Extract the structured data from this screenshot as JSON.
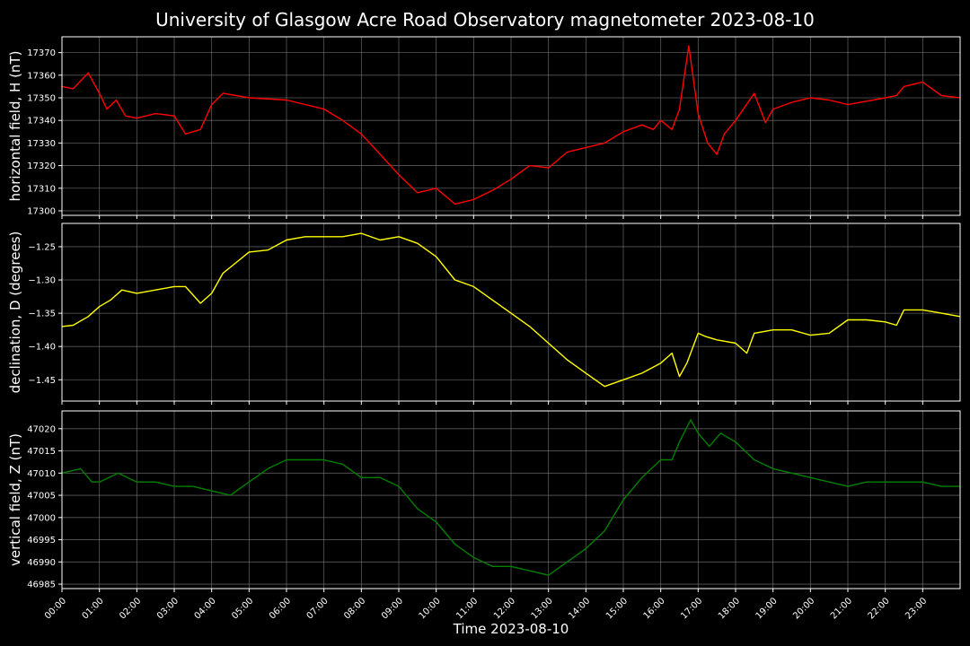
{
  "figure": {
    "title": "University of Glasgow Acre Road Observatory magnetometer 2023-08-10",
    "xlabel": "Time 2023-08-10",
    "background": "#000000",
    "grid_color": "#808080",
    "axis_color": "#ffffff"
  },
  "chart_data": [
    {
      "type": "line",
      "name": "H",
      "ylabel": "horizontal field, H (nT)",
      "color": "#ff0000",
      "xlim": [
        0,
        24
      ],
      "ylim": [
        17298,
        17377
      ],
      "yticks": [
        17300,
        17310,
        17320,
        17330,
        17340,
        17350,
        17360,
        17370
      ],
      "grid": true,
      "x": [
        0,
        0.3,
        0.7,
        1.0,
        1.2,
        1.45,
        1.7,
        2.0,
        2.5,
        3.0,
        3.3,
        3.7,
        4.0,
        4.3,
        5.0,
        6.0,
        7.0,
        7.5,
        8.0,
        8.5,
        9.0,
        9.5,
        10.0,
        10.5,
        11.0,
        11.5,
        12.0,
        12.5,
        13.0,
        13.5,
        14.0,
        14.5,
        15.0,
        15.5,
        15.8,
        16.0,
        16.3,
        16.5,
        16.75,
        17.0,
        17.25,
        17.5,
        17.7,
        18.0,
        18.5,
        18.8,
        19.0,
        19.5,
        20.0,
        20.5,
        21.0,
        22.0,
        22.3,
        22.5,
        23.0,
        23.5,
        24.0
      ],
      "values": [
        17355,
        17354,
        17361,
        17352,
        17345,
        17349,
        17342,
        17341,
        17343,
        17342,
        17334,
        17336,
        17347,
        17352,
        17350,
        17349,
        17345,
        17340,
        17334,
        17325,
        17316,
        17308,
        17310,
        17303,
        17305,
        17309,
        17314,
        17320,
        17319,
        17326,
        17328,
        17330,
        17335,
        17338,
        17336,
        17340,
        17336,
        17345,
        17373,
        17343,
        17330,
        17325,
        17334,
        17340,
        17352,
        17339,
        17345,
        17348,
        17350,
        17349,
        17347,
        17350,
        17351,
        17355,
        17357,
        17351,
        17350
      ]
    },
    {
      "type": "line",
      "name": "D",
      "ylabel": "declination, D (degrees)",
      "color": "#ffff00",
      "xlim": [
        0,
        24
      ],
      "ylim": [
        -1.482,
        -1.215
      ],
      "yticks": [
        -1.45,
        -1.4,
        -1.35,
        -1.3,
        -1.25
      ],
      "ytick_labels": [
        "−1.45",
        "−1.40",
        "−1.35",
        "−1.30",
        "−1.25"
      ],
      "grid": true,
      "x": [
        0,
        0.3,
        0.7,
        1.0,
        1.3,
        1.6,
        2.0,
        2.5,
        3.0,
        3.3,
        3.7,
        4.0,
        4.3,
        5.0,
        5.5,
        6.0,
        6.5,
        7.0,
        7.5,
        8.0,
        8.5,
        9.0,
        9.5,
        10.0,
        10.5,
        11.0,
        11.5,
        12.0,
        12.5,
        13.0,
        13.5,
        14.0,
        14.5,
        15.0,
        15.5,
        16.0,
        16.3,
        16.5,
        16.7,
        17.0,
        17.2,
        17.5,
        18.0,
        18.3,
        18.5,
        19.0,
        19.5,
        20.0,
        20.5,
        21.0,
        21.5,
        22.0,
        22.3,
        22.5,
        23.0,
        23.5,
        24.0
      ],
      "values": [
        -1.37,
        -1.368,
        -1.355,
        -1.34,
        -1.33,
        -1.315,
        -1.32,
        -1.315,
        -1.31,
        -1.31,
        -1.335,
        -1.32,
        -1.29,
        -1.258,
        -1.255,
        -1.24,
        -1.235,
        -1.235,
        -1.235,
        -1.23,
        -1.24,
        -1.235,
        -1.245,
        -1.265,
        -1.3,
        -1.31,
        -1.33,
        -1.35,
        -1.37,
        -1.395,
        -1.42,
        -1.44,
        -1.46,
        -1.45,
        -1.44,
        -1.425,
        -1.41,
        -1.445,
        -1.425,
        -1.38,
        -1.385,
        -1.39,
        -1.395,
        -1.41,
        -1.38,
        -1.375,
        -1.375,
        -1.383,
        -1.38,
        -1.36,
        -1.36,
        -1.363,
        -1.368,
        -1.345,
        -1.345,
        -1.35,
        -1.355
      ]
    },
    {
      "type": "line",
      "name": "Z",
      "ylabel": "vertical field, Z (nT)",
      "color": "#008000",
      "xlim": [
        0,
        24
      ],
      "ylim": [
        46984,
        47024
      ],
      "yticks": [
        46985,
        46990,
        46995,
        47000,
        47005,
        47010,
        47015,
        47020
      ],
      "grid": true,
      "x": [
        0,
        0.5,
        0.8,
        1.0,
        1.5,
        2.0,
        2.5,
        3.0,
        3.5,
        4.0,
        4.5,
        5.0,
        5.5,
        6.0,
        6.5,
        7.0,
        7.5,
        8.0,
        8.5,
        9.0,
        9.5,
        10.0,
        10.5,
        11.0,
        11.5,
        12.0,
        12.5,
        13.0,
        13.5,
        14.0,
        14.5,
        15.0,
        15.5,
        16.0,
        16.3,
        16.5,
        16.8,
        17.0,
        17.3,
        17.6,
        18.0,
        18.5,
        19.0,
        19.5,
        20.0,
        20.5,
        21.0,
        21.5,
        22.0,
        22.5,
        23.0,
        23.5,
        24.0
      ],
      "values": [
        47010,
        47011,
        47008,
        47008,
        47010,
        47008,
        47008,
        47007,
        47007,
        47006,
        47005,
        47008,
        47011,
        47013,
        47013,
        47013,
        47012,
        47009,
        47009,
        47007,
        47002,
        46999,
        46994,
        46991,
        46989,
        46989,
        46988,
        46987,
        46990,
        46993,
        46997,
        47004,
        47009,
        47013,
        47013,
        47017,
        47022,
        47019,
        47016,
        47019,
        47017,
        47013,
        47011,
        47010,
        47009,
        47008,
        47007,
        47008,
        47008,
        47008,
        47008,
        47007,
        47007
      ]
    }
  ],
  "x_axis": {
    "ticks": [
      0,
      1,
      2,
      3,
      4,
      5,
      6,
      7,
      8,
      9,
      10,
      11,
      12,
      13,
      14,
      15,
      16,
      17,
      18,
      19,
      20,
      21,
      22,
      23
    ],
    "tick_labels": [
      "00:00",
      "01:00",
      "02:00",
      "03:00",
      "04:00",
      "05:00",
      "06:00",
      "07:00",
      "08:00",
      "09:00",
      "10:00",
      "11:00",
      "12:00",
      "13:00",
      "14:00",
      "15:00",
      "16:00",
      "17:00",
      "18:00",
      "19:00",
      "20:00",
      "21:00",
      "22:00",
      "23:00"
    ]
  }
}
